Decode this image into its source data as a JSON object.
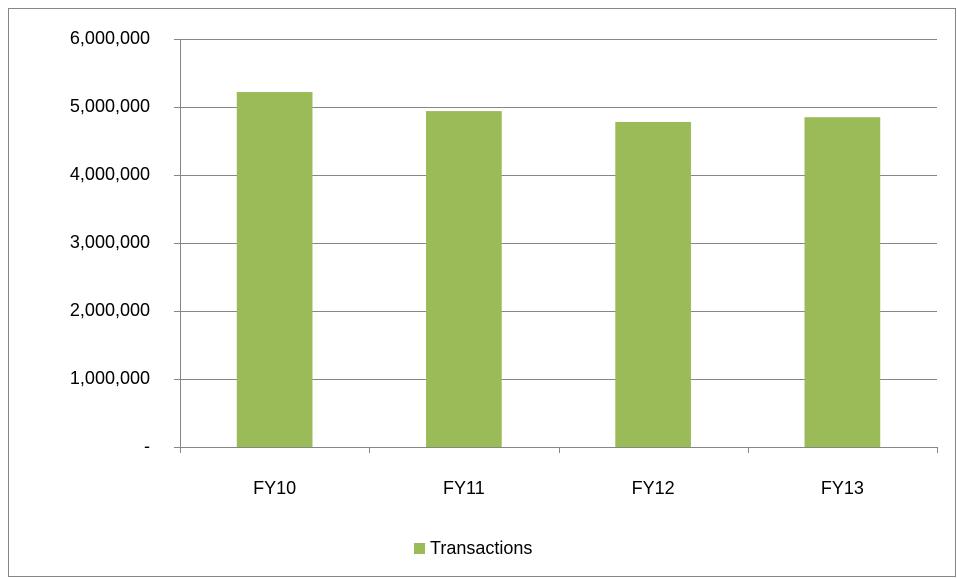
{
  "chart_data": {
    "type": "bar",
    "categories": [
      "FY10",
      "FY11",
      "FY12",
      "FY13"
    ],
    "series": [
      {
        "name": "Transactions",
        "color": "#9bbb59",
        "values": [
          5220000,
          4940000,
          4780000,
          4850000
        ]
      }
    ],
    "ylim": [
      0,
      6000000
    ],
    "yticks": [
      {
        "value": 0,
        "label": "-"
      },
      {
        "value": 1000000,
        "label": "1,000,000"
      },
      {
        "value": 2000000,
        "label": "2,000,000"
      },
      {
        "value": 3000000,
        "label": "3,000,000"
      },
      {
        "value": 4000000,
        "label": "4,000,000"
      },
      {
        "value": 5000000,
        "label": "5,000,000"
      },
      {
        "value": 6000000,
        "label": "6,000,000"
      }
    ],
    "grid": true,
    "legend": "bottom"
  }
}
